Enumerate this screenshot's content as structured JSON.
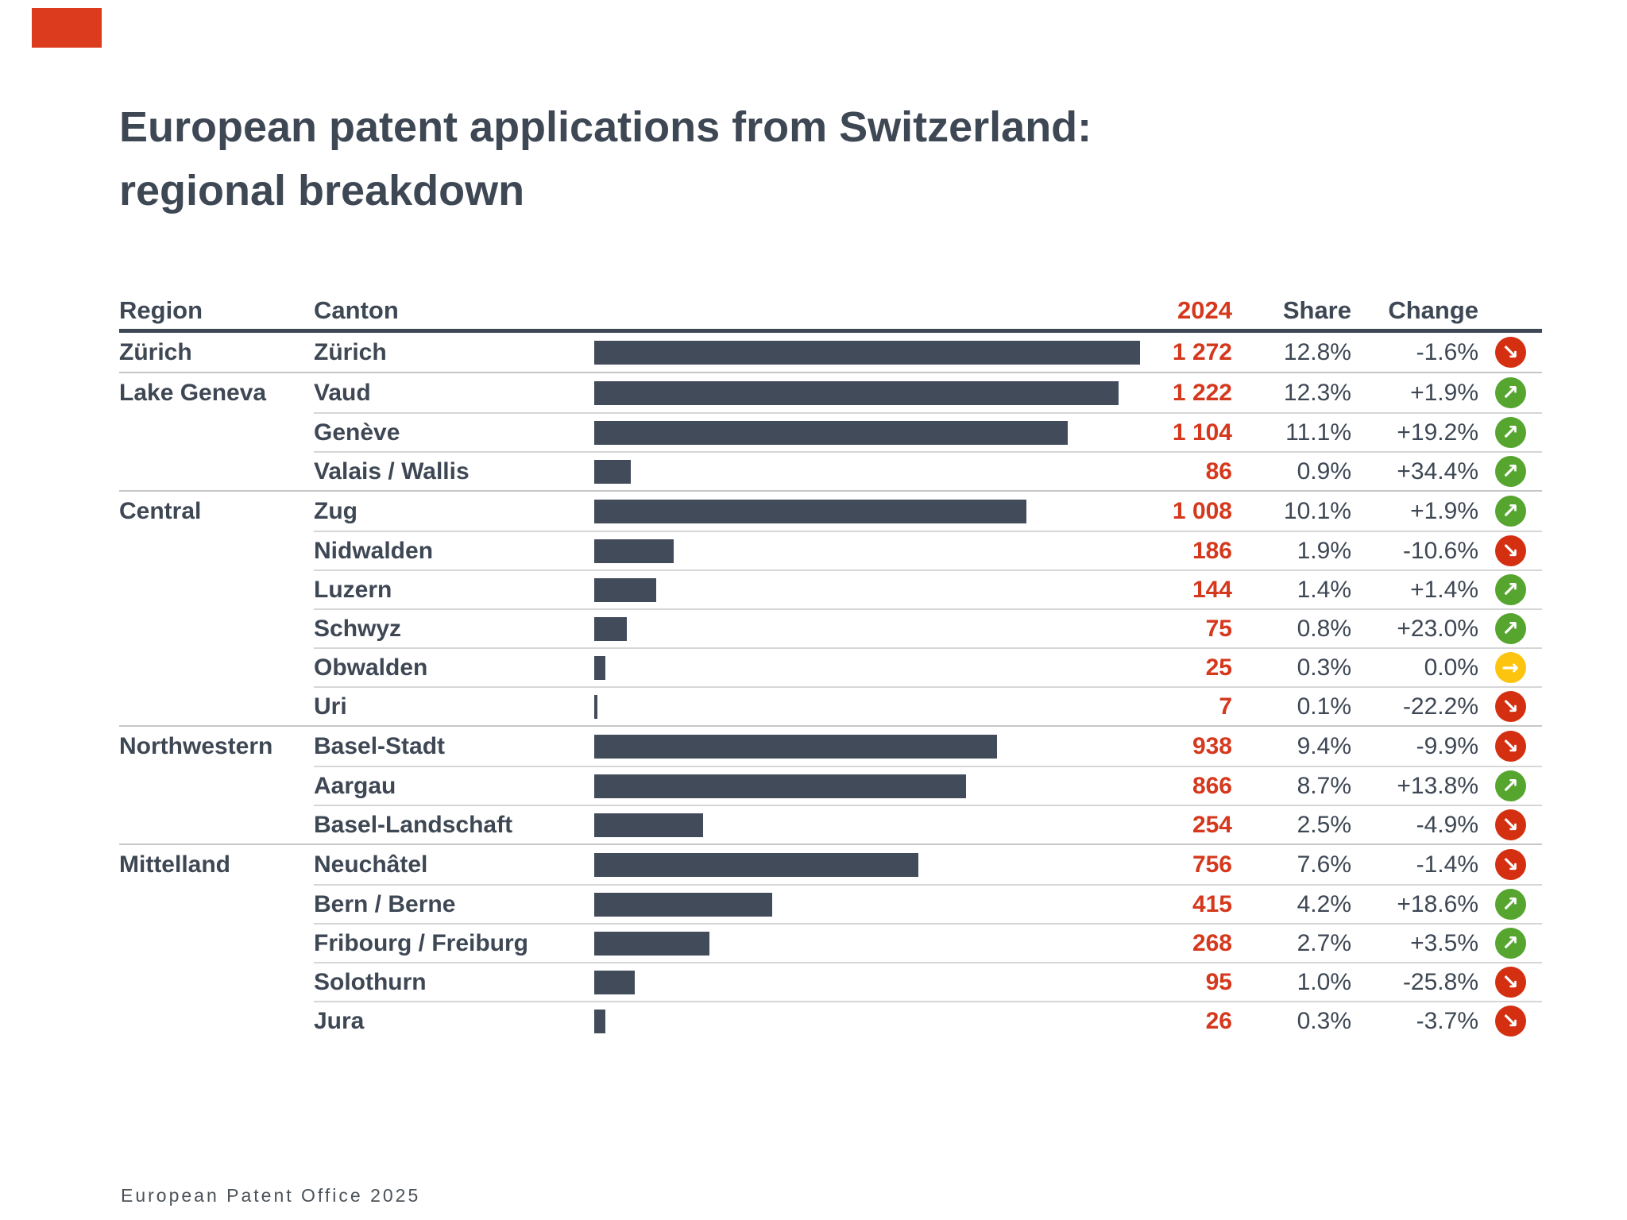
{
  "title": {
    "line1": "European patent applications from Switzerland:",
    "line2": "regional breakdown"
  },
  "footer": "European Patent Office 2025",
  "colors": {
    "dark": "#3e4754",
    "bar": "#414b5a",
    "red": "#d5381d",
    "brand_red": "#dd3b1e",
    "up_green": "#56a52f",
    "down_red": "#d42f10",
    "flat_amber": "#fcc40f",
    "sep": "#d6d6d6",
    "sep_group": "#c6c6c6"
  },
  "icons": {
    "up": {
      "glyph": "↗",
      "name": "up-right-arrow-icon",
      "color": "#56a52f"
    },
    "down": {
      "glyph": "↘",
      "name": "down-right-arrow-icon",
      "color": "#d42f10"
    },
    "flat": {
      "glyph": "→",
      "name": "right-arrow-icon",
      "color": "#fcc40f"
    }
  },
  "chart_data": {
    "type": "table",
    "title": "European patent applications from Switzerland: regional breakdown",
    "columns": [
      "Region",
      "Canton",
      "2024",
      "Share",
      "Change"
    ],
    "bar_column": "2024",
    "max_value": 1272,
    "legend": "none",
    "rows": [
      {
        "region": "Zürich",
        "canton": "Zürich",
        "value": "1 272",
        "value_num": 1272,
        "share": "12.8%",
        "change": "-1.6%",
        "trend": "down",
        "group_start": true
      },
      {
        "region": "Lake Geneva",
        "canton": "Vaud",
        "value": "1 222",
        "value_num": 1222,
        "share": "12.3%",
        "change": "+1.9%",
        "trend": "up",
        "group_start": true
      },
      {
        "region": "",
        "canton": "Genève",
        "value": "1 104",
        "value_num": 1104,
        "share": "11.1%",
        "change": "+19.2%",
        "trend": "up",
        "group_start": false
      },
      {
        "region": "",
        "canton": "Valais / Wallis",
        "value": "86",
        "value_num": 86,
        "share": "0.9%",
        "change": "+34.4%",
        "trend": "up",
        "group_start": false
      },
      {
        "region": "Central",
        "canton": "Zug",
        "value": "1 008",
        "value_num": 1008,
        "share": "10.1%",
        "change": "+1.9%",
        "trend": "up",
        "group_start": true
      },
      {
        "region": "",
        "canton": "Nidwalden",
        "value": "186",
        "value_num": 186,
        "share": "1.9%",
        "change": "-10.6%",
        "trend": "down",
        "group_start": false
      },
      {
        "region": "",
        "canton": "Luzern",
        "value": "144",
        "value_num": 144,
        "share": "1.4%",
        "change": "+1.4%",
        "trend": "up",
        "group_start": false
      },
      {
        "region": "",
        "canton": "Schwyz",
        "value": "75",
        "value_num": 75,
        "share": "0.8%",
        "change": "+23.0%",
        "trend": "up",
        "group_start": false
      },
      {
        "region": "",
        "canton": "Obwalden",
        "value": "25",
        "value_num": 25,
        "share": "0.3%",
        "change": "0.0%",
        "trend": "flat",
        "group_start": false
      },
      {
        "region": "",
        "canton": "Uri",
        "value": "7",
        "value_num": 7,
        "share": "0.1%",
        "change": "-22.2%",
        "trend": "down",
        "group_start": false
      },
      {
        "region": "Northwestern",
        "canton": "Basel-Stadt",
        "value": "938",
        "value_num": 938,
        "share": "9.4%",
        "change": "-9.9%",
        "trend": "down",
        "group_start": true
      },
      {
        "region": "",
        "canton": "Aargau",
        "value": "866",
        "value_num": 866,
        "share": "8.7%",
        "change": "+13.8%",
        "trend": "up",
        "group_start": false
      },
      {
        "region": "",
        "canton": "Basel-Landschaft",
        "value": "254",
        "value_num": 254,
        "share": "2.5%",
        "change": "-4.9%",
        "trend": "down",
        "group_start": false
      },
      {
        "region": "Mittelland",
        "canton": "Neuchâtel",
        "value": "756",
        "value_num": 756,
        "share": "7.6%",
        "change": "-1.4%",
        "trend": "down",
        "group_start": true
      },
      {
        "region": "",
        "canton": "Bern / Berne",
        "value": "415",
        "value_num": 415,
        "share": "4.2%",
        "change": "+18.6%",
        "trend": "up",
        "group_start": false
      },
      {
        "region": "",
        "canton": "Fribourg / Freiburg",
        "value": "268",
        "value_num": 268,
        "share": "2.7%",
        "change": "+3.5%",
        "trend": "up",
        "group_start": false
      },
      {
        "region": "",
        "canton": "Solothurn",
        "value": "95",
        "value_num": 95,
        "share": "1.0%",
        "change": "-25.8%",
        "trend": "down",
        "group_start": false
      },
      {
        "region": "",
        "canton": "Jura",
        "value": "26",
        "value_num": 26,
        "share": "0.3%",
        "change": "-3.7%",
        "trend": "down",
        "group_start": false
      }
    ]
  }
}
